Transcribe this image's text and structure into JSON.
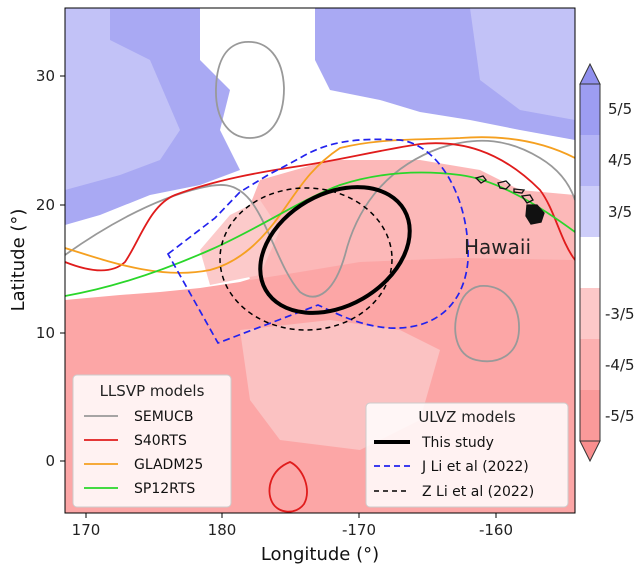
{
  "chart_data": {
    "type": "map",
    "xlabel": "Longitude (°)",
    "ylabel": "Latitude (°)",
    "x_ticks": [
      "170",
      "180",
      "-170",
      "-160"
    ],
    "y_ticks": [
      "0",
      "10",
      "20",
      "30"
    ],
    "place_label": "Hawaii",
    "colorbar": {
      "labels": [
        "5/5",
        "4/5",
        "3/5",
        "-3/5",
        "-4/5",
        "-5/5"
      ],
      "colors": [
        "#9d9df2",
        "#b4b4f6",
        "#cdcdf9",
        "#ffffff",
        "#fdc8c8",
        "#fcb0b0",
        "#fa9a9a"
      ]
    },
    "legend_llsvp": {
      "title": "LLSVP models",
      "entries": [
        {
          "label": "SEMUCB",
          "color": "#999999"
        },
        {
          "label": "S40RTS",
          "color": "#e01c1c"
        },
        {
          "label": "GLADM25",
          "color": "#f5a020"
        },
        {
          "label": "SP12RTS",
          "color": "#2ad62a"
        }
      ]
    },
    "legend_ulvz": {
      "title": "ULVZ models",
      "entries": [
        {
          "label": "This study",
          "color": "#000000",
          "style": "solid-thick"
        },
        {
          "label": "J Li et al (2022)",
          "color": "#2222ee",
          "style": "dashed"
        },
        {
          "label": "Z Li et al (2022)",
          "color": "#000000",
          "style": "dashed"
        }
      ]
    }
  }
}
